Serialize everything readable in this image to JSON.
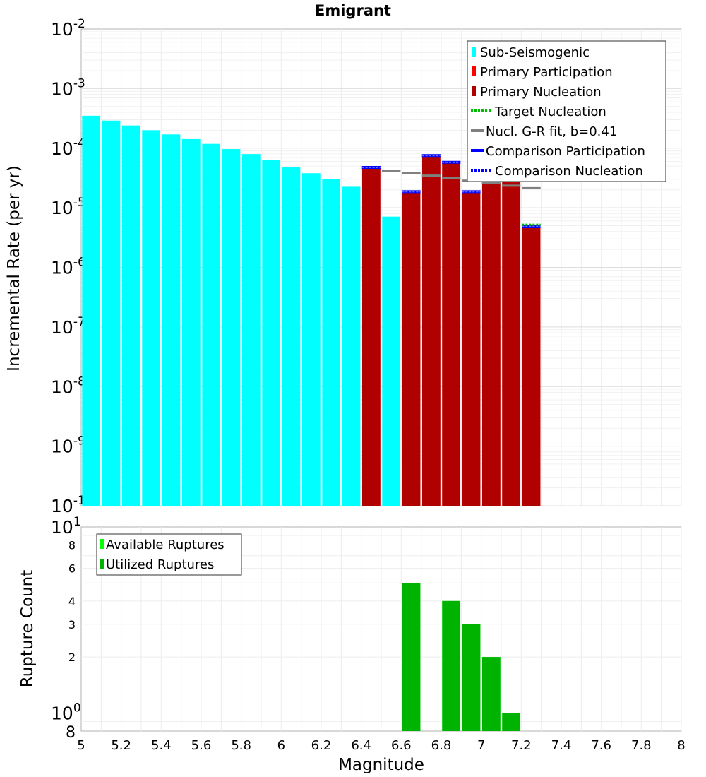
{
  "chart_data": [
    {
      "type": "bar",
      "title": "Emigrant",
      "xlabel": "Magnitude",
      "ylabel": "Incremental Rate (per yr)",
      "yscale": "log",
      "xlim": [
        5,
        8
      ],
      "ylim": [
        1e-10,
        0.01
      ],
      "y_major_ticks": [
        {
          "base": "10",
          "exp": "-10",
          "value": 1e-10
        },
        {
          "base": "10",
          "exp": "-9",
          "value": 1e-09
        },
        {
          "base": "10",
          "exp": "-8",
          "value": 1e-08
        },
        {
          "base": "10",
          "exp": "-7",
          "value": 1e-07
        },
        {
          "base": "10",
          "exp": "-6",
          "value": 1e-06
        },
        {
          "base": "10",
          "exp": "-5",
          "value": 1e-05
        },
        {
          "base": "10",
          "exp": "-4",
          "value": 0.0001
        },
        {
          "base": "10",
          "exp": "-3",
          "value": 0.001
        },
        {
          "base": "10",
          "exp": "-2",
          "value": 0.01
        }
      ],
      "bin_width": 0.1,
      "sub_seismogenic": {
        "name": "Sub-Seismogenic",
        "color": "#00ffff",
        "x": [
          5.05,
          5.15,
          5.25,
          5.35,
          5.45,
          5.55,
          5.65,
          5.75,
          5.85,
          5.95,
          6.05,
          6.15,
          6.25,
          6.35,
          6.55
        ],
        "values": [
          0.00035,
          0.00029,
          0.00024,
          0.0002,
          0.00017,
          0.000142,
          0.000118,
          9.65e-05,
          7.95e-05,
          6.35e-05,
          4.75e-05,
          3.8e-05,
          3e-05,
          2.25e-05,
          7.1e-06
        ]
      },
      "primary_participation": {
        "name": "Primary Participation",
        "color": "#ff0000",
        "x": [
          6.45,
          6.65,
          6.75,
          6.85,
          6.95,
          7.05,
          7.15,
          7.25
        ],
        "values": [
          4.75e-05,
          1.86e-05,
          7.5e-05,
          5.8e-05,
          1.86e-05,
          4.05e-05,
          3.4e-05,
          4.8e-06
        ]
      },
      "primary_nucleation": {
        "name": "Primary Nucleation",
        "color": "#b00000",
        "x": [
          6.45,
          6.65,
          6.75,
          6.85,
          6.95,
          7.05,
          7.15,
          7.25
        ],
        "values": [
          4.75e-05,
          1.86e-05,
          7.5e-05,
          5.8e-05,
          1.86e-05,
          4.05e-05,
          3.4e-05,
          4.8e-06
        ]
      },
      "target_nucleation": {
        "name": "Target Nucleation",
        "color": "#00bb00",
        "x": [
          7.25
        ],
        "values": [
          5.2e-06
        ]
      },
      "gr_fit": {
        "name": "Nucl. G-R fit, b=0.41",
        "color": "#808080",
        "x": [
          6.55,
          6.65,
          6.75,
          6.85,
          6.95,
          7.05,
          7.15,
          7.25
        ],
        "values": [
          4.2e-05,
          3.81e-05,
          3.46e-05,
          3.14e-05,
          2.85e-05,
          2.59e-05,
          2.35e-05,
          2.13e-05
        ]
      },
      "comparison_participation": {
        "name": "Comparison Participation",
        "color": "#0000ff",
        "x": [
          6.45,
          6.65,
          6.75,
          6.85,
          6.95,
          7.25
        ],
        "values": [
          4.75e-05,
          1.86e-05,
          7.5e-05,
          5.8e-05,
          1.86e-05,
          4.8e-06
        ]
      },
      "comparison_nucleation": {
        "name": "Comparison Nucleation",
        "color": "#0000ff",
        "x": [
          6.45,
          6.65,
          6.75,
          6.85,
          6.95,
          7.25
        ],
        "values": [
          4.75e-05,
          1.86e-05,
          7.5e-05,
          5.8e-05,
          1.86e-05,
          4.8e-06
        ]
      },
      "legend": {
        "position": "top-right",
        "entries": [
          "Sub-Seismogenic",
          "Primary Participation",
          "Primary Nucleation",
          "Target Nucleation",
          "Nucl. G-R fit, b=0.41",
          "Comparison Participation",
          "Comparison Nucleation"
        ]
      }
    },
    {
      "type": "bar",
      "xlabel": "Magnitude",
      "ylabel": "Rupture Count",
      "yscale": "log",
      "xlim": [
        5,
        8
      ],
      "ylim": [
        0.8,
        10
      ],
      "x_ticks": [
        "5",
        "5.2",
        "5.4",
        "5.6",
        "5.8",
        "6",
        "6.2",
        "6.4",
        "6.6",
        "6.8",
        "7",
        "7.2",
        "7.4",
        "7.6",
        "7.8",
        "8"
      ],
      "y_ticks": [
        {
          "label": "8",
          "value": 8,
          "size": "small"
        },
        {
          "label": "6",
          "value": 6,
          "size": "small"
        },
        {
          "label": "4",
          "value": 4,
          "size": "small"
        },
        {
          "label": "3",
          "value": 3,
          "size": "small"
        },
        {
          "label": "2",
          "value": 2,
          "size": "small"
        }
      ],
      "y_major_ticks": [
        {
          "base": "10",
          "exp": "1",
          "value": 10
        },
        {
          "base": "10",
          "exp": "0",
          "value": 1
        }
      ],
      "y_bottom_label": {
        "label": "8",
        "value": 0.8
      },
      "available_ruptures": {
        "name": "Available Ruptures",
        "color": "#00ff00",
        "x": [
          6.65,
          6.85,
          6.95,
          7.05,
          7.15
        ],
        "values": [
          5,
          4,
          3,
          2,
          1
        ]
      },
      "utilized_ruptures": {
        "name": "Utilized Ruptures",
        "color": "#00b300",
        "x": [
          6.65,
          6.85,
          6.95,
          7.05,
          7.15
        ],
        "values": [
          5,
          4,
          3,
          2,
          1
        ]
      },
      "legend": {
        "position": "top-left",
        "entries": [
          "Available Ruptures",
          "Utilized Ruptures"
        ]
      }
    }
  ]
}
